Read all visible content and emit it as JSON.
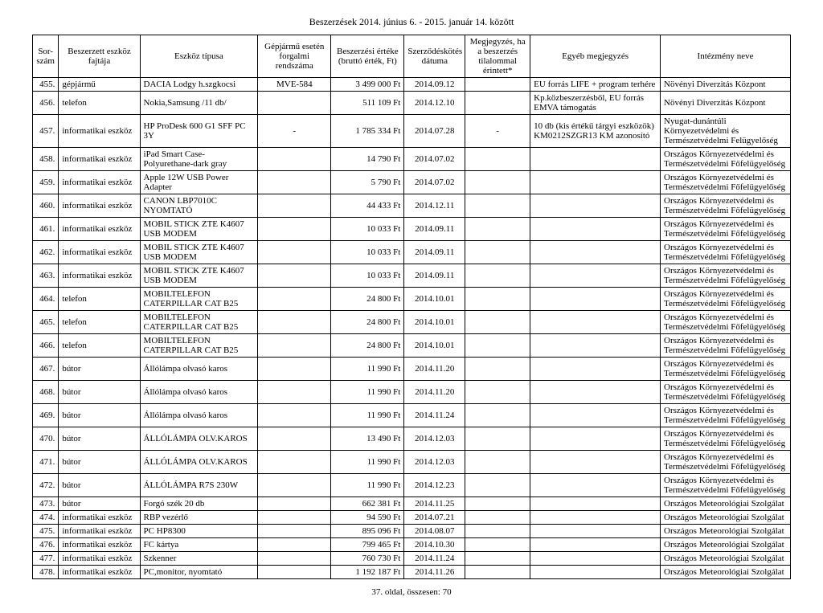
{
  "title": "Beszerzések 2014. június 6. - 2015. január 14. között",
  "footer": "37. oldal, összesen: 70",
  "columns": [
    "Sor-szám",
    "Beszerzett eszköz fajtája",
    "Eszköz típusa",
    "Gépjármű esetén forgalmi rendszáma",
    "Beszerzési értéke (bruttó érték, Ft)",
    "Szerződéskötés dátuma",
    "Megjegyzés, ha a beszerzés tilalommal érintett*",
    "Egyéb megjegyzés",
    "Intézmény neve"
  ],
  "rows": [
    {
      "n": "455.",
      "kind": "gépjármű",
      "type": "DACIA Lodgy h.szgkocsi",
      "reg": "MVE-584",
      "value": "3 499 000 Ft",
      "date": "2014.09.12",
      "ban": "",
      "note": "EU forrás LIFE + program terhére",
      "inst": "Növényi Diverzitás Központ"
    },
    {
      "n": "456.",
      "kind": "telefon",
      "type": "Nokia,Samsung /11 db/",
      "reg": "",
      "value": "511 109 Ft",
      "date": "2014.12.10",
      "ban": "",
      "note": "Kp.közbeszerzésből, EU forrás EMVA támogatás",
      "inst": "Növényi Diverzitás Központ"
    },
    {
      "n": "457.",
      "kind": "informatikai eszköz",
      "type": "HP ProDesk 600 G1 SFF PC 3Y",
      "reg": "-",
      "value": "1 785 334 Ft",
      "date": "2014.07.28",
      "ban": "-",
      "note": "10 db (kis értékű tárgyi eszközök) KM0212SZGR13 KM azonosító",
      "inst": "Nyugat-dunántúli Környezetvédelmi és Természetvédelmi Felügyelőség"
    },
    {
      "n": "458.",
      "kind": "informatikai eszköz",
      "type": "iPad Smart Case-Polyurethane-dark gray",
      "reg": "",
      "value": "14 790 Ft",
      "date": "2014.07.02",
      "ban": "",
      "note": "",
      "inst": "Országos Környezetvédelmi és Természetvédelmi Főfelügyelőség"
    },
    {
      "n": "459.",
      "kind": "informatikai eszköz",
      "type": "Apple 12W USB Power Adapter",
      "reg": "",
      "value": "5 790 Ft",
      "date": "2014.07.02",
      "ban": "",
      "note": "",
      "inst": "Országos Környezetvédelmi és Természetvédelmi Főfelügyelőség"
    },
    {
      "n": "460.",
      "kind": "informatikai eszköz",
      "type": "CANON LBP7010C NYOMTATÓ",
      "reg": "",
      "value": "44 433 Ft",
      "date": "2014.12.11",
      "ban": "",
      "note": "",
      "inst": "Országos Környezetvédelmi és Természetvédelmi Főfelügyelőség"
    },
    {
      "n": "461.",
      "kind": "informatikai eszköz",
      "type": "MOBIL STICK ZTE K4607 USB MODEM",
      "reg": "",
      "value": "10 033 Ft",
      "date": "2014.09.11",
      "ban": "",
      "note": "",
      "inst": "Országos Környezetvédelmi és Természetvédelmi Főfelügyelőség"
    },
    {
      "n": "462.",
      "kind": "informatikai eszköz",
      "type": "MOBIL STICK ZTE K4607 USB MODEM",
      "reg": "",
      "value": "10 033 Ft",
      "date": "2014.09.11",
      "ban": "",
      "note": "",
      "inst": "Országos Környezetvédelmi és Természetvédelmi Főfelügyelőség"
    },
    {
      "n": "463.",
      "kind": "informatikai eszköz",
      "type": "MOBIL STICK ZTE K4607 USB MODEM",
      "reg": "",
      "value": "10 033 Ft",
      "date": "2014.09.11",
      "ban": "",
      "note": "",
      "inst": "Országos Környezetvédelmi és Természetvédelmi Főfelügyelőség"
    },
    {
      "n": "464.",
      "kind": "telefon",
      "type": "MOBILTELEFON CATERPILLAR CAT B25",
      "reg": "",
      "value": "24 800 Ft",
      "date": "2014.10.01",
      "ban": "",
      "note": "",
      "inst": "Országos Környezetvédelmi és Természetvédelmi Főfelügyelőség"
    },
    {
      "n": "465.",
      "kind": "telefon",
      "type": "MOBILTELEFON CATERPILLAR CAT B25",
      "reg": "",
      "value": "24 800 Ft",
      "date": "2014.10.01",
      "ban": "",
      "note": "",
      "inst": "Országos Környezetvédelmi és Természetvédelmi Főfelügyelőség"
    },
    {
      "n": "466.",
      "kind": "telefon",
      "type": "MOBILTELEFON CATERPILLAR CAT B25",
      "reg": "",
      "value": "24 800 Ft",
      "date": "2014.10.01",
      "ban": "",
      "note": "",
      "inst": "Országos Környezetvédelmi és Természetvédelmi Főfelügyelőség"
    },
    {
      "n": "467.",
      "kind": "bútor",
      "type": "Állólámpa olvasó karos",
      "reg": "",
      "value": "11 990 Ft",
      "date": "2014.11.20",
      "ban": "",
      "note": "",
      "inst": "Országos Környezetvédelmi és Természetvédelmi Főfelügyelőség"
    },
    {
      "n": "468.",
      "kind": "bútor",
      "type": "Állólámpa olvasó karos",
      "reg": "",
      "value": "11 990 Ft",
      "date": "2014.11.20",
      "ban": "",
      "note": "",
      "inst": "Országos Környezetvédelmi és Természetvédelmi Főfelügyelőség"
    },
    {
      "n": "469.",
      "kind": "bútor",
      "type": "Állólámpa olvasó karos",
      "reg": "",
      "value": "11 990 Ft",
      "date": "2014.11.24",
      "ban": "",
      "note": "",
      "inst": "Országos Környezetvédelmi és Természetvédelmi Főfelügyelőség"
    },
    {
      "n": "470.",
      "kind": "bútor",
      "type": "ÁLLÓLÁMPA OLV.KAROS",
      "reg": "",
      "value": "13 490 Ft",
      "date": "2014.12.03",
      "ban": "",
      "note": "",
      "inst": "Országos Környezetvédelmi és Természetvédelmi Főfelügyelőség"
    },
    {
      "n": "471.",
      "kind": "bútor",
      "type": "ÁLLÓLÁMPA OLV.KAROS",
      "reg": "",
      "value": "11 990 Ft",
      "date": "2014.12.03",
      "ban": "",
      "note": "",
      "inst": "Országos Környezetvédelmi és Természetvédelmi Főfelügyelőség"
    },
    {
      "n": "472.",
      "kind": "bútor",
      "type": "ÁLLÓLÁMPA R7S 230W",
      "reg": "",
      "value": "11 990 Ft",
      "date": "2014.12.23",
      "ban": "",
      "note": "",
      "inst": "Országos Környezetvédelmi és Természetvédelmi Főfelügyelőség"
    },
    {
      "n": "473.",
      "kind": "bútor",
      "type": "Forgó szék 20 db",
      "reg": "",
      "value": "662 381 Ft",
      "date": "2014.11.25",
      "ban": "",
      "note": "",
      "inst": "Országos Meteorológiai Szolgálat"
    },
    {
      "n": "474.",
      "kind": "informatikai eszköz",
      "type": "RBP vezérlő",
      "reg": "",
      "value": "94 590 Ft",
      "date": "2014.07.21",
      "ban": "",
      "note": "",
      "inst": "Országos Meteorológiai Szolgálat"
    },
    {
      "n": "475.",
      "kind": "informatikai eszköz",
      "type": "PC HP8300",
      "reg": "",
      "value": "895 096 Ft",
      "date": "2014.08.07",
      "ban": "",
      "note": "",
      "inst": "Országos Meteorológiai Szolgálat"
    },
    {
      "n": "476.",
      "kind": "informatikai eszköz",
      "type": "FC kártya",
      "reg": "",
      "value": "799 465 Ft",
      "date": "2014.10.30",
      "ban": "",
      "note": "",
      "inst": "Országos Meteorológiai Szolgálat"
    },
    {
      "n": "477.",
      "kind": "informatikai eszköz",
      "type": "Szkenner",
      "reg": "",
      "value": "760 730 Ft",
      "date": "2014.11.24",
      "ban": "",
      "note": "",
      "inst": "Országos Meteorológiai Szolgálat"
    },
    {
      "n": "478.",
      "kind": "informatikai eszköz",
      "type": "PC,monitor, nyomtató",
      "reg": "",
      "value": "1 192 187 Ft",
      "date": "2014.11.26",
      "ban": "",
      "note": "",
      "inst": "Országos Meteorológiai Szolgálat"
    }
  ]
}
